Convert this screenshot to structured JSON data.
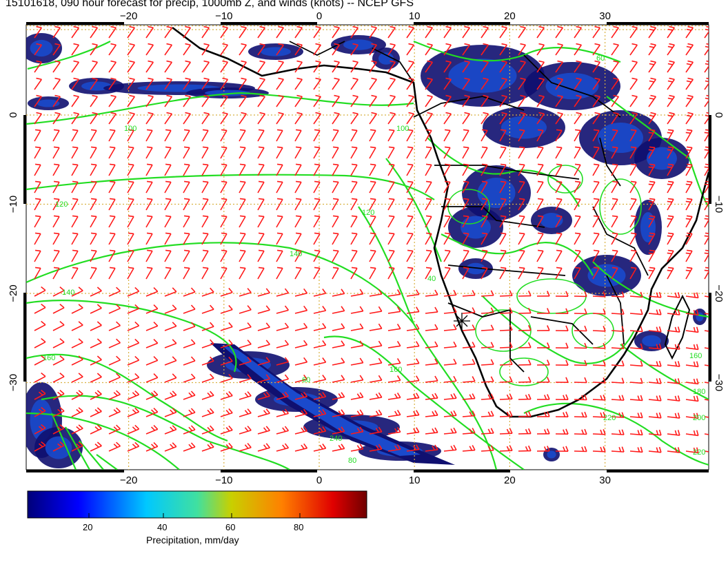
{
  "title": "15101618, 090 hour forecast for precip, 1000mb Z, and winds (knots) -- NCEP GFS",
  "map": {
    "lon_ticks": [
      "−20",
      "−10",
      "0",
      "10",
      "20",
      "30"
    ],
    "lat_ticks": [
      "0",
      "−10",
      "−20",
      "−30"
    ],
    "contour_labels": [
      "60",
      "100",
      "100",
      "120",
      "120",
      "140",
      "140",
      "160",
      "160",
      "160",
      "180",
      "200",
      "220",
      "220",
      "240",
      "80",
      "40",
      "60"
    ],
    "colors": {
      "contour": "#22dd22",
      "barb": "#ff1a1a",
      "coast": "#000000",
      "grid": "#d8b040",
      "precip_low": "#101070",
      "precip_mid": "#1a4acc"
    }
  },
  "colorbar": {
    "ticks": [
      "20",
      "40",
      "60",
      "80"
    ],
    "title": "Precipitation, mm/day"
  }
}
